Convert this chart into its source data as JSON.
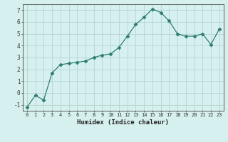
{
  "x": [
    0,
    1,
    2,
    3,
    4,
    5,
    6,
    7,
    8,
    9,
    10,
    11,
    12,
    13,
    14,
    15,
    16,
    17,
    18,
    19,
    20,
    21,
    22,
    23
  ],
  "y": [
    -1.2,
    -0.2,
    -0.6,
    1.7,
    2.4,
    2.5,
    2.6,
    2.7,
    3.0,
    3.2,
    3.3,
    3.85,
    4.8,
    5.8,
    6.4,
    7.1,
    6.8,
    6.1,
    5.0,
    4.8,
    4.8,
    5.0,
    4.1,
    5.4
  ],
  "xlabel": "Humidex (Indice chaleur)",
  "line_color": "#2e7d6e",
  "marker": "D",
  "marker_size": 2.5,
  "bg_color": "#d6f0ef",
  "grid_color": "#b8d8d6",
  "ylim": [
    -1.5,
    7.5
  ],
  "xlim": [
    -0.5,
    23.5
  ],
  "yticks": [
    -1,
    0,
    1,
    2,
    3,
    4,
    5,
    6,
    7
  ],
  "xticks": [
    0,
    1,
    2,
    3,
    4,
    5,
    6,
    7,
    8,
    9,
    10,
    11,
    12,
    13,
    14,
    15,
    16,
    17,
    18,
    19,
    20,
    21,
    22,
    23
  ]
}
